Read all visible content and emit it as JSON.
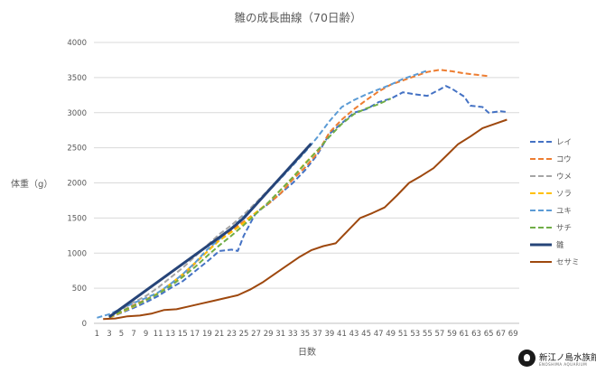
{
  "chart_data": {
    "type": "line",
    "title": "雛の成長曲線（70日齢）",
    "xlabel": "日数",
    "ylabel": "体重（g）",
    "xlim": [
      1,
      70
    ],
    "ylim": [
      0,
      4000
    ],
    "yticks": [
      0,
      500,
      1000,
      1500,
      2000,
      2500,
      3000,
      3500,
      4000
    ],
    "xticks": [
      1,
      3,
      5,
      7,
      9,
      11,
      13,
      15,
      17,
      19,
      21,
      23,
      25,
      27,
      29,
      31,
      33,
      35,
      37,
      39,
      41,
      43,
      45,
      47,
      49,
      51,
      53,
      55,
      57,
      59,
      61,
      63,
      65,
      67,
      69
    ],
    "grid": true,
    "legend_position": "right",
    "series": [
      {
        "name": "レイ",
        "color": "#4472c4",
        "dash": true,
        "points": [
          [
            3,
            80
          ],
          [
            5,
            150
          ],
          [
            7,
            220
          ],
          [
            9,
            300
          ],
          [
            11,
            390
          ],
          [
            13,
            500
          ],
          [
            15,
            600
          ],
          [
            17,
            740
          ],
          [
            19,
            880
          ],
          [
            21,
            1030
          ],
          [
            23,
            1050
          ],
          [
            24,
            1030
          ],
          [
            25,
            1250
          ],
          [
            27,
            1580
          ],
          [
            29,
            1700
          ],
          [
            31,
            1850
          ],
          [
            33,
            2000
          ],
          [
            35,
            2180
          ],
          [
            37,
            2400
          ],
          [
            39,
            2700
          ],
          [
            41,
            2850
          ],
          [
            43,
            3000
          ],
          [
            45,
            3050
          ],
          [
            47,
            3150
          ],
          [
            49,
            3200
          ],
          [
            51,
            3290
          ],
          [
            53,
            3260
          ],
          [
            55,
            3240
          ],
          [
            57,
            3330
          ],
          [
            58,
            3380
          ],
          [
            59,
            3340
          ],
          [
            61,
            3230
          ],
          [
            62,
            3100
          ],
          [
            64,
            3080
          ],
          [
            65,
            3000
          ],
          [
            67,
            3020
          ],
          [
            68,
            3010
          ]
        ]
      },
      {
        "name": "コウ",
        "color": "#ed7d31",
        "dash": true,
        "points": [
          [
            3,
            90
          ],
          [
            5,
            170
          ],
          [
            7,
            260
          ],
          [
            9,
            340
          ],
          [
            11,
            430
          ],
          [
            13,
            560
          ],
          [
            15,
            680
          ],
          [
            17,
            850
          ],
          [
            19,
            1020
          ],
          [
            21,
            1200
          ],
          [
            23,
            1330
          ],
          [
            25,
            1450
          ],
          [
            27,
            1580
          ],
          [
            29,
            1700
          ],
          [
            31,
            1850
          ],
          [
            33,
            2050
          ],
          [
            35,
            2220
          ],
          [
            37,
            2420
          ],
          [
            39,
            2720
          ],
          [
            41,
            2900
          ],
          [
            43,
            3050
          ],
          [
            45,
            3180
          ],
          [
            47,
            3300
          ],
          [
            49,
            3400
          ],
          [
            51,
            3460
          ],
          [
            53,
            3520
          ],
          [
            55,
            3580
          ],
          [
            57,
            3610
          ],
          [
            59,
            3590
          ],
          [
            61,
            3560
          ],
          [
            63,
            3540
          ],
          [
            65,
            3520
          ]
        ]
      },
      {
        "name": "ウメ",
        "color": "#a5a5a5",
        "dash": true,
        "points": [
          [
            3,
            100
          ],
          [
            5,
            200
          ],
          [
            7,
            300
          ],
          [
            9,
            390
          ],
          [
            11,
            510
          ],
          [
            13,
            650
          ],
          [
            15,
            790
          ],
          [
            17,
            950
          ],
          [
            19,
            1110
          ],
          [
            21,
            1270
          ],
          [
            23,
            1400
          ],
          [
            25,
            1550
          ],
          [
            27,
            1720
          ],
          [
            29,
            1900
          ],
          [
            31,
            2080
          ],
          [
            33,
            2260
          ],
          [
            35,
            2460
          ],
          [
            36,
            2560
          ]
        ]
      },
      {
        "name": "ソラ",
        "color": "#ffc000",
        "dash": true,
        "points": [
          [
            3,
            80
          ],
          [
            5,
            160
          ],
          [
            7,
            240
          ],
          [
            9,
            330
          ],
          [
            11,
            430
          ],
          [
            13,
            560
          ],
          [
            15,
            700
          ],
          [
            17,
            860
          ],
          [
            19,
            1020
          ],
          [
            21,
            1180
          ],
          [
            23,
            1300
          ],
          [
            25,
            1430
          ],
          [
            27,
            1580
          ],
          [
            29,
            1720
          ],
          [
            31,
            1900
          ],
          [
            33,
            2080
          ],
          [
            35,
            2280
          ],
          [
            37,
            2460
          ]
        ]
      },
      {
        "name": "ユキ",
        "color": "#5b9bd5",
        "dash": true,
        "points": [
          [
            1,
            80
          ],
          [
            3,
            130
          ],
          [
            5,
            210
          ],
          [
            7,
            290
          ],
          [
            9,
            360
          ],
          [
            11,
            440
          ],
          [
            13,
            560
          ],
          [
            15,
            700
          ],
          [
            17,
            860
          ],
          [
            19,
            1050
          ],
          [
            21,
            1200
          ],
          [
            23,
            1360
          ],
          [
            25,
            1520
          ],
          [
            27,
            1700
          ],
          [
            29,
            1880
          ],
          [
            31,
            2060
          ],
          [
            33,
            2250
          ],
          [
            35,
            2440
          ],
          [
            37,
            2650
          ],
          [
            39,
            2880
          ],
          [
            41,
            3080
          ],
          [
            43,
            3180
          ],
          [
            45,
            3260
          ],
          [
            47,
            3330
          ],
          [
            49,
            3400
          ],
          [
            51,
            3480
          ],
          [
            53,
            3540
          ],
          [
            55,
            3600
          ]
        ]
      },
      {
        "name": "サチ",
        "color": "#70ad47",
        "dash": true,
        "points": [
          [
            3,
            90
          ],
          [
            5,
            170
          ],
          [
            7,
            250
          ],
          [
            9,
            330
          ],
          [
            11,
            420
          ],
          [
            13,
            530
          ],
          [
            15,
            660
          ],
          [
            17,
            800
          ],
          [
            19,
            960
          ],
          [
            21,
            1110
          ],
          [
            23,
            1250
          ],
          [
            25,
            1400
          ],
          [
            27,
            1560
          ],
          [
            29,
            1720
          ],
          [
            31,
            1900
          ],
          [
            33,
            2080
          ],
          [
            35,
            2270
          ],
          [
            37,
            2460
          ],
          [
            39,
            2660
          ],
          [
            41,
            2840
          ],
          [
            43,
            2980
          ],
          [
            45,
            3060
          ],
          [
            47,
            3120
          ],
          [
            49,
            3200
          ]
        ]
      },
      {
        "name": "雛",
        "color": "#264478",
        "dash": false,
        "width": 3,
        "points": [
          [
            3,
            90
          ],
          [
            23,
            1350
          ],
          [
            25,
            1500
          ],
          [
            36,
            2560
          ]
        ]
      },
      {
        "name": "セサミ",
        "color": "#9e480e",
        "dash": false,
        "width": 2,
        "points": [
          [
            2,
            60
          ],
          [
            4,
            70
          ],
          [
            6,
            100
          ],
          [
            8,
            110
          ],
          [
            10,
            140
          ],
          [
            12,
            190
          ],
          [
            14,
            200
          ],
          [
            16,
            240
          ],
          [
            18,
            280
          ],
          [
            20,
            320
          ],
          [
            22,
            360
          ],
          [
            24,
            400
          ],
          [
            26,
            480
          ],
          [
            28,
            580
          ],
          [
            30,
            700
          ],
          [
            32,
            820
          ],
          [
            34,
            940
          ],
          [
            36,
            1040
          ],
          [
            38,
            1100
          ],
          [
            40,
            1140
          ],
          [
            42,
            1320
          ],
          [
            44,
            1500
          ],
          [
            46,
            1570
          ],
          [
            48,
            1650
          ],
          [
            50,
            1820
          ],
          [
            52,
            2000
          ],
          [
            54,
            2100
          ],
          [
            56,
            2210
          ],
          [
            58,
            2380
          ],
          [
            60,
            2550
          ],
          [
            62,
            2660
          ],
          [
            64,
            2780
          ],
          [
            66,
            2840
          ],
          [
            68,
            2900
          ]
        ]
      }
    ]
  }
}
